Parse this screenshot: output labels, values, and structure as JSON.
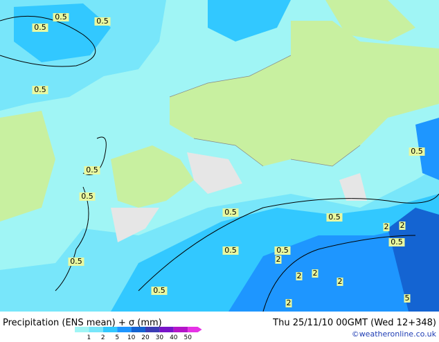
{
  "header": {
    "title": "Precipitation (ENS mean) + σ (mm)",
    "date": "Thu 25/11/10 00GMT (Wed 12+348)",
    "credit": "©weatheronline.co.uk"
  },
  "legend": {
    "values": [
      1,
      2,
      5,
      10,
      20,
      30,
      40,
      50
    ],
    "colors": [
      "#a0f5f5",
      "#78e6fa",
      "#32c8ff",
      "#1e96ff",
      "#1464d2",
      "#3c3cb4",
      "#7814c8",
      "#b414c8",
      "#e632e6"
    ]
  },
  "contour_labels": [
    "0.5",
    "0.5",
    "0.5",
    "0.5",
    "0.5",
    "0.5",
    "0.5",
    "0.5",
    "0.5",
    "0.5",
    "0.5",
    "0.5",
    "0.5",
    "0.5",
    "2",
    "2",
    "2",
    "2",
    "2",
    "2",
    "2",
    "5"
  ]
}
